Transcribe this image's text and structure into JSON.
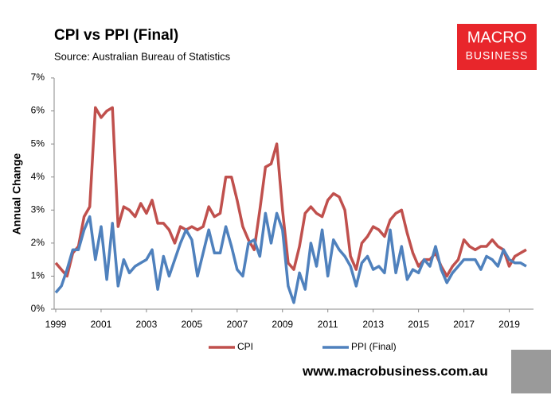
{
  "chart_data": {
    "type": "line",
    "title": "CPI vs PPI (Final)",
    "subtitle": "Source: Australian Bureau of Statistics",
    "ylabel": "Annual Change",
    "categories": [
      "1999",
      null,
      null,
      null,
      null,
      null,
      null,
      null,
      "2001",
      null,
      null,
      null,
      null,
      null,
      null,
      null,
      "2003",
      null,
      null,
      null,
      null,
      null,
      null,
      null,
      "2005",
      null,
      null,
      null,
      null,
      null,
      null,
      null,
      "2007",
      null,
      null,
      null,
      null,
      null,
      null,
      null,
      "2009",
      null,
      null,
      null,
      null,
      null,
      null,
      null,
      "2011",
      null,
      null,
      null,
      null,
      null,
      null,
      null,
      "2013",
      null,
      null,
      null,
      null,
      null,
      null,
      null,
      "2015",
      null,
      null,
      null,
      null,
      null,
      null,
      null,
      "2017",
      null,
      null,
      null,
      null,
      null,
      null,
      null,
      "2019",
      null,
      null,
      null
    ],
    "series": [
      {
        "name": "CPI",
        "color": "#c0504d",
        "values": [
          1.4,
          1.2,
          1.0,
          1.7,
          1.9,
          2.8,
          3.1,
          6.1,
          5.8,
          6.0,
          6.1,
          2.5,
          3.1,
          3.0,
          2.8,
          3.2,
          2.9,
          3.3,
          2.6,
          2.6,
          2.4,
          2.0,
          2.5,
          2.4,
          2.5,
          2.4,
          2.5,
          3.1,
          2.8,
          2.9,
          4.0,
          4.0,
          3.3,
          2.5,
          2.1,
          1.8,
          3.0,
          4.3,
          4.4,
          5.0,
          3.0,
          1.4,
          1.2,
          1.9,
          2.9,
          3.1,
          2.9,
          2.8,
          3.3,
          3.5,
          3.4,
          3.0,
          1.6,
          1.2,
          2.0,
          2.2,
          2.5,
          2.4,
          2.2,
          2.7,
          2.9,
          3.0,
          2.3,
          1.7,
          1.3,
          1.5,
          1.5,
          1.7,
          1.3,
          1.0,
          1.3,
          1.5,
          2.1,
          1.9,
          1.8,
          1.9,
          1.9,
          2.1,
          1.9,
          1.8,
          1.3,
          1.6,
          1.7,
          1.8
        ]
      },
      {
        "name": "PPI (Final)",
        "color": "#4f81bd",
        "values": [
          0.5,
          0.7,
          1.2,
          1.8,
          1.8,
          2.4,
          2.8,
          1.5,
          2.5,
          0.9,
          2.6,
          0.7,
          1.5,
          1.1,
          1.3,
          1.4,
          1.5,
          1.8,
          0.6,
          1.6,
          1.0,
          1.5,
          2.0,
          2.4,
          2.1,
          1.0,
          1.7,
          2.4,
          1.7,
          1.7,
          2.5,
          1.9,
          1.2,
          1.0,
          2.0,
          2.1,
          1.6,
          2.9,
          2.0,
          2.9,
          2.4,
          0.7,
          0.2,
          1.1,
          0.6,
          2.0,
          1.3,
          2.4,
          1.0,
          2.1,
          1.8,
          1.6,
          1.3,
          0.7,
          1.4,
          1.6,
          1.2,
          1.3,
          1.1,
          2.4,
          1.1,
          1.9,
          0.9,
          1.2,
          1.1,
          1.5,
          1.3,
          1.9,
          1.2,
          0.8,
          1.1,
          1.3,
          1.5,
          1.5,
          1.5,
          1.2,
          1.6,
          1.5,
          1.3,
          1.8,
          1.5,
          1.4,
          1.4,
          1.3
        ]
      }
    ],
    "ylim": [
      0,
      7
    ],
    "yticks": [
      {
        "value": 0,
        "label": "0%"
      },
      {
        "value": 1,
        "label": "1%"
      },
      {
        "value": 2,
        "label": "2%"
      },
      {
        "value": 3,
        "label": "3%"
      },
      {
        "value": 4,
        "label": "4%"
      },
      {
        "value": 5,
        "label": "5%"
      },
      {
        "value": 6,
        "label": "6%"
      },
      {
        "value": 7,
        "label": "7%"
      }
    ],
    "grid": false,
    "legend": "bottom"
  },
  "logo": [
    "MACRO",
    "BUSINESS"
  ],
  "footer": "www.macrobusiness.com.au"
}
